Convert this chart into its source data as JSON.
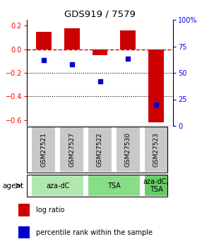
{
  "title": "GDS919 / 7579",
  "samples": [
    "GSM27521",
    "GSM27527",
    "GSM27522",
    "GSM27530",
    "GSM27523"
  ],
  "log_ratios": [
    0.15,
    0.18,
    -0.05,
    0.16,
    -0.62
  ],
  "percentile_ranks": [
    62,
    58,
    42,
    63,
    20
  ],
  "ylim_left": [
    -0.65,
    0.25
  ],
  "ylim_right": [
    0,
    100
  ],
  "left_yticks": [
    -0.6,
    -0.4,
    -0.2,
    0.0,
    0.2
  ],
  "right_yticks": [
    0,
    25,
    50,
    75,
    100
  ],
  "bar_color": "#cc0000",
  "dot_color": "#0000cc",
  "dashed_color": "#cc0000",
  "sample_box_color": "#c8c8c8",
  "agent_colors": [
    "#b0e8b0",
    "#88dd88",
    "#66cc66"
  ],
  "agent_groups": [
    {
      "label": "aza-dC",
      "start": 0,
      "end": 1
    },
    {
      "label": "TSA",
      "start": 2,
      "end": 3
    },
    {
      "label": "aza-dC,\nTSA",
      "start": 4,
      "end": 4
    }
  ],
  "bar_width": 0.55
}
